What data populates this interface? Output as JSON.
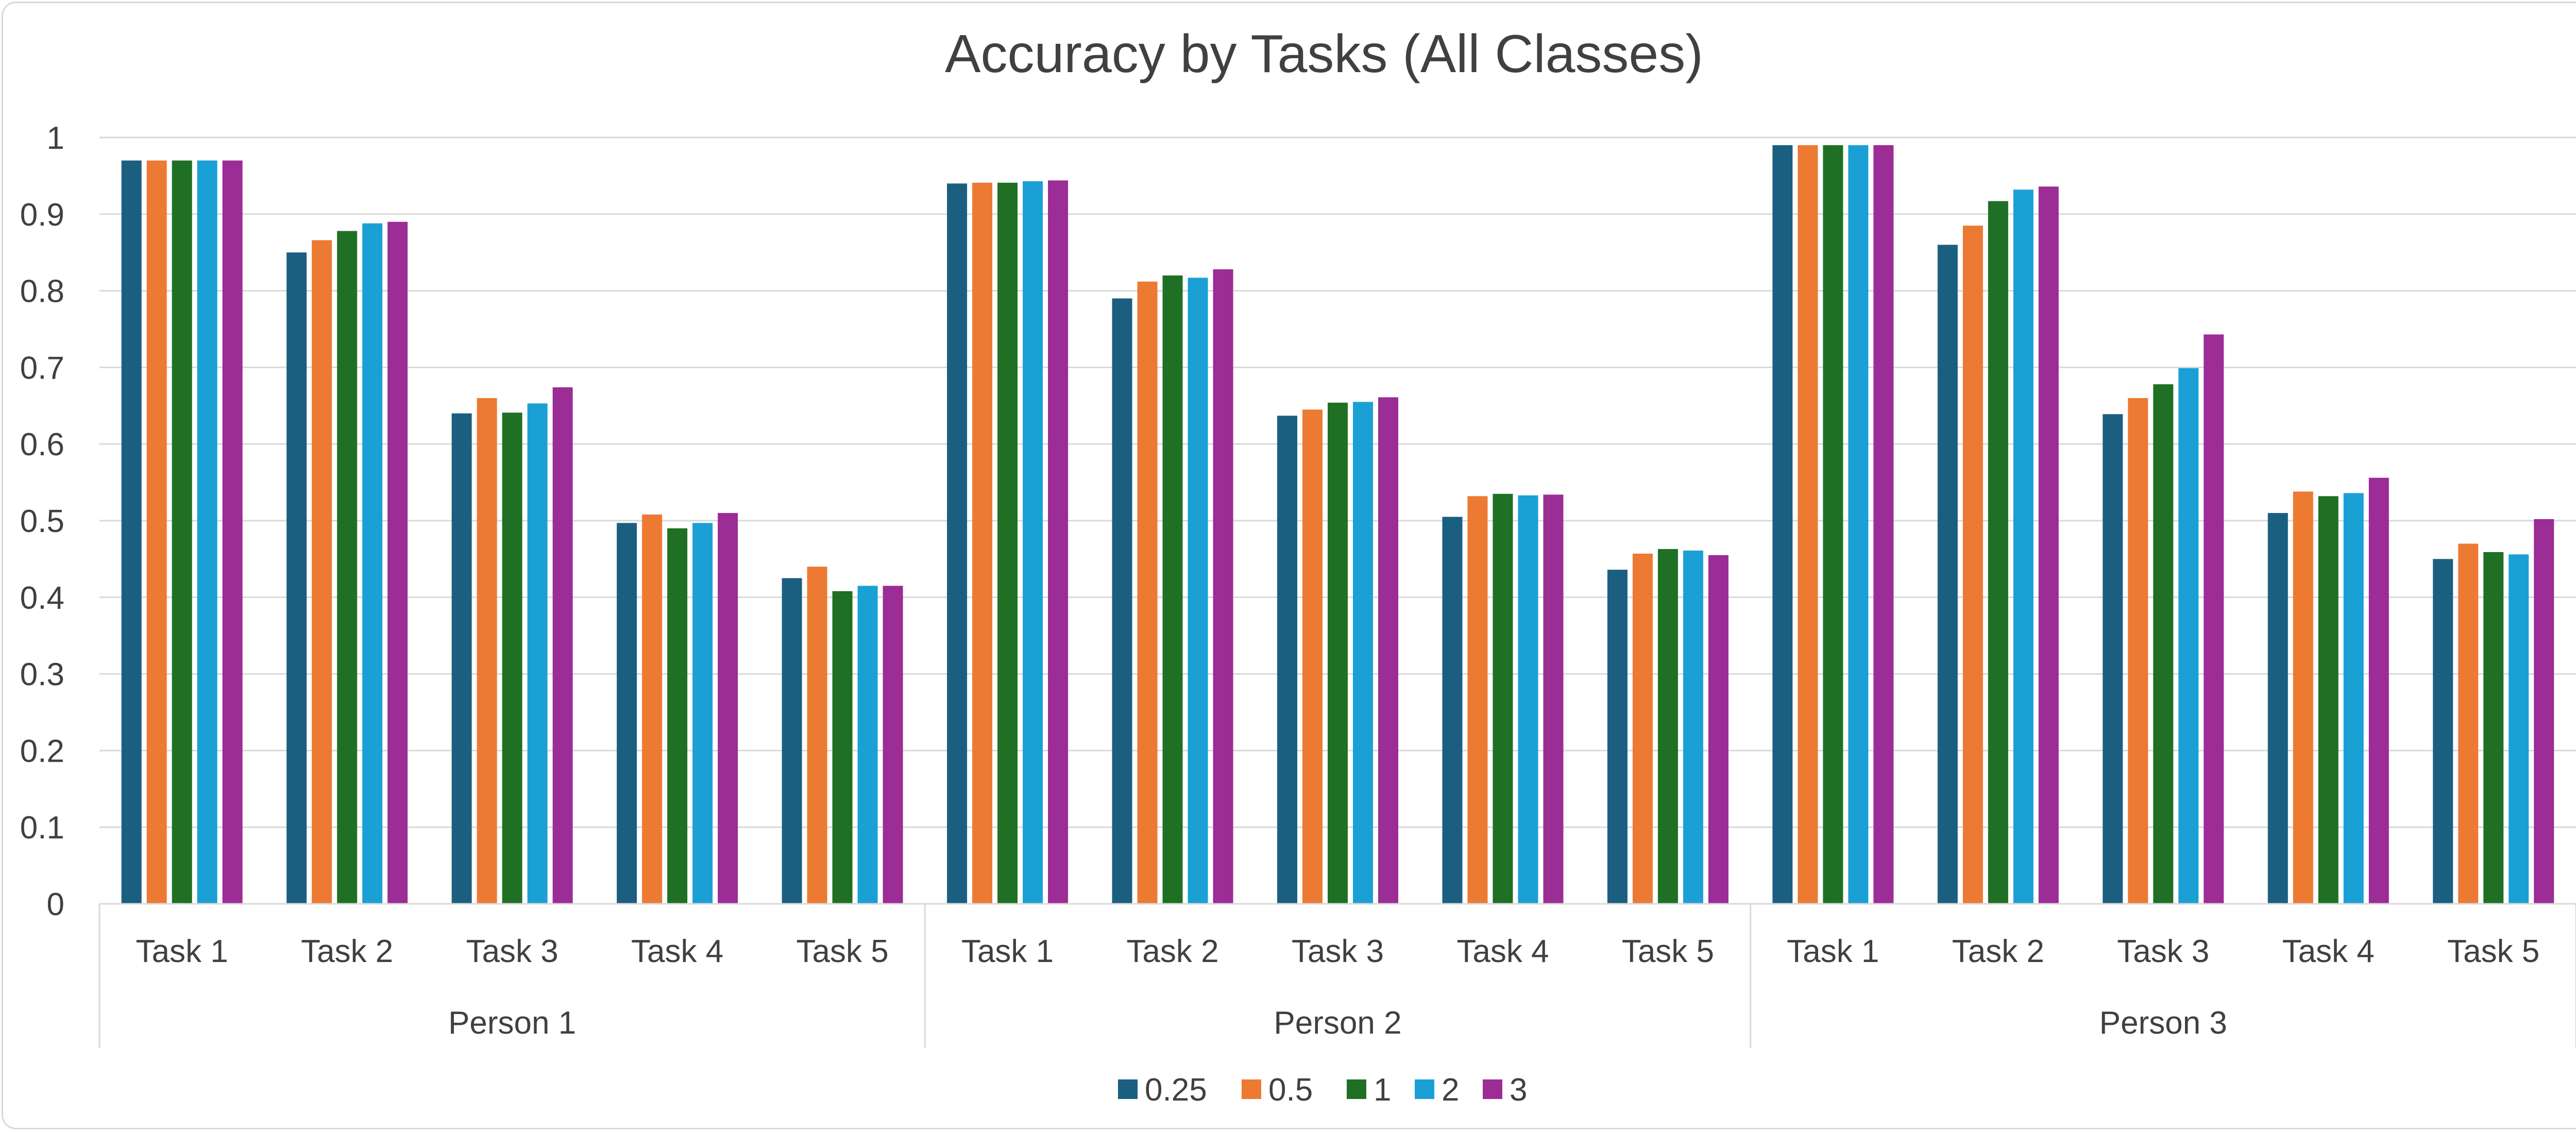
{
  "chart_data": {
    "type": "bar",
    "title": "Accuracy by Tasks (All Classes)",
    "xlabel": "",
    "ylabel": "",
    "ylim": [
      0,
      1
    ],
    "yticks": [
      "0",
      "0.1",
      "0.2",
      "0.3",
      "0.4",
      "0.5",
      "0.6",
      "0.7",
      "0.8",
      "0.9",
      "1"
    ],
    "grid": true,
    "legend_position": "bottom",
    "groups": [
      "Person 1",
      "Person 2",
      "Person 3"
    ],
    "categories": [
      "Task 1",
      "Task 2",
      "Task 3",
      "Task 4",
      "Task 5"
    ],
    "series": [
      {
        "name": "0.25",
        "color": "#1b5f80",
        "values": [
          [
            0.97,
            0.85,
            0.64,
            0.497,
            0.425
          ],
          [
            0.94,
            0.79,
            0.637,
            0.505,
            0.436
          ],
          [
            0.99,
            0.86,
            0.639,
            0.51,
            0.45
          ]
        ]
      },
      {
        "name": "0.5",
        "color": "#ec7a33",
        "values": [
          [
            0.97,
            0.866,
            0.66,
            0.508,
            0.44
          ],
          [
            0.941,
            0.812,
            0.645,
            0.532,
            0.457
          ],
          [
            0.99,
            0.885,
            0.66,
            0.538,
            0.47
          ]
        ]
      },
      {
        "name": "1",
        "color": "#1f7024",
        "values": [
          [
            0.97,
            0.878,
            0.641,
            0.49,
            0.408
          ],
          [
            0.941,
            0.82,
            0.654,
            0.535,
            0.463
          ],
          [
            0.99,
            0.917,
            0.678,
            0.532,
            0.459
          ]
        ]
      },
      {
        "name": "2",
        "color": "#1ba0d6",
        "values": [
          [
            0.97,
            0.888,
            0.653,
            0.497,
            0.415
          ],
          [
            0.943,
            0.817,
            0.655,
            0.533,
            0.461
          ],
          [
            0.99,
            0.932,
            0.699,
            0.536,
            0.456
          ]
        ]
      },
      {
        "name": "3",
        "color": "#9c2c96",
        "values": [
          [
            0.97,
            0.89,
            0.674,
            0.51,
            0.415
          ],
          [
            0.944,
            0.828,
            0.661,
            0.534,
            0.455
          ],
          [
            0.99,
            0.936,
            0.743,
            0.556,
            0.502
          ]
        ]
      }
    ]
  },
  "colors": {
    "grid": "#d9d9d9",
    "axis": "#d9d9d9",
    "text": "#404040",
    "background": "#ffffff"
  }
}
